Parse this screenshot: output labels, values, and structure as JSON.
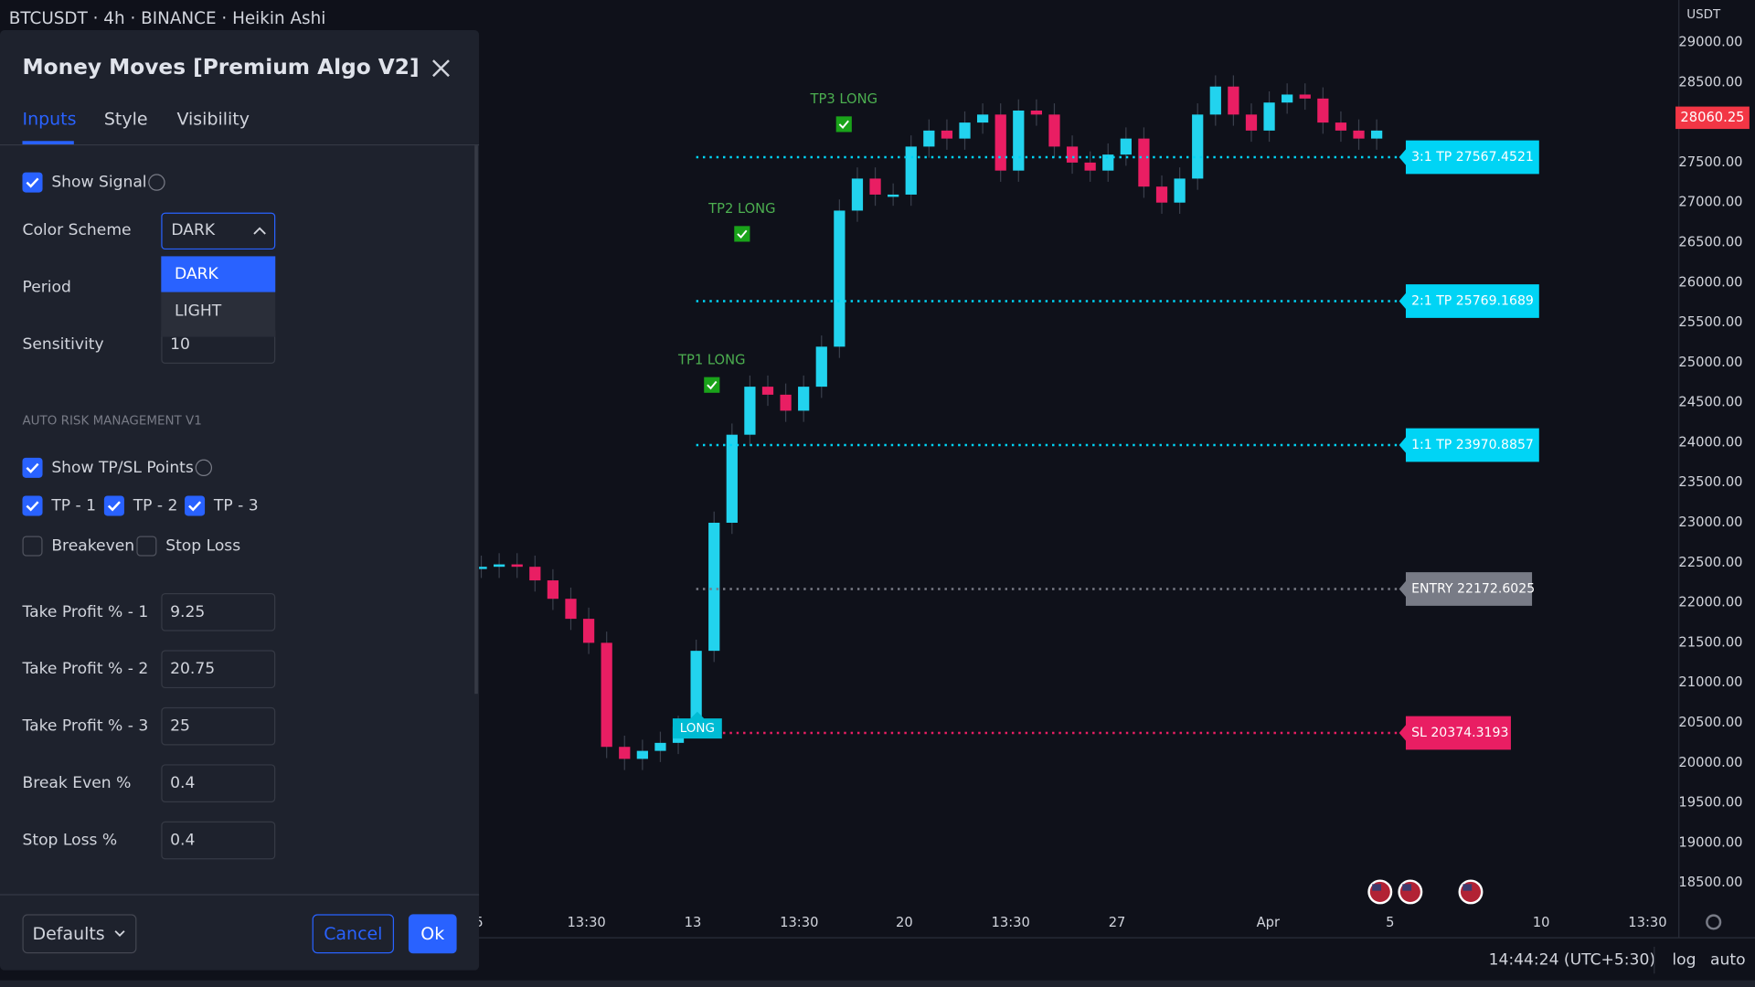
{
  "header": {
    "symbol": "BTCUSDT · 4h · BINANCE · Heikin Ashi"
  },
  "dialog": {
    "title": "Money Moves [Premium Algo V2]",
    "tabs": [
      "Inputs",
      "Style",
      "Visibility"
    ],
    "show_signal": {
      "label": "Show Signal",
      "checked": true
    },
    "color_scheme": {
      "label": "Color Scheme",
      "value": "DARK",
      "options": [
        "DARK",
        "LIGHT"
      ]
    },
    "period": "Period",
    "sensitivity": {
      "label": "Sensitivity",
      "value": "10"
    },
    "section": "AUTO RISK MANAGEMENT V1",
    "checks": [
      {
        "label": "Show TP/SL Points",
        "checked": true
      },
      {
        "label": "TP - 1",
        "checked": true
      },
      {
        "label": "TP - 2",
        "checked": true
      },
      {
        "label": "TP - 3",
        "checked": true
      },
      {
        "label": "Breakeven",
        "checked": false
      },
      {
        "label": "Stop Loss",
        "checked": false
      }
    ],
    "inputs": [
      {
        "label": "Take Profit % - 1",
        "value": "9.25"
      },
      {
        "label": "Take Profit % - 2",
        "value": "20.75"
      },
      {
        "label": "Take Profit % - 3",
        "value": "25"
      },
      {
        "label": "Break Even %",
        "value": "0.4"
      },
      {
        "label": "Stop Loss %",
        "value": "0.4"
      }
    ],
    "buttons": {
      "defaults": "Defaults",
      "cancel": "Cancel",
      "ok": "Ok"
    }
  },
  "chart": {
    "currency": "USDT",
    "ylim": [
      18500,
      29000
    ],
    "yticks": [
      {
        "value": 29000,
        "label": "29000.00"
      },
      {
        "value": 28500,
        "label": "28500.00"
      },
      {
        "value": 28000,
        "label": "28000.00"
      },
      {
        "value": 27500,
        "label": "27500.00"
      },
      {
        "value": 27000,
        "label": "27000.00"
      },
      {
        "value": 26500,
        "label": "26500.00"
      },
      {
        "value": 26000,
        "label": "26000.00"
      },
      {
        "value": 25500,
        "label": "25500.00"
      },
      {
        "value": 25000,
        "label": "25000.00"
      },
      {
        "value": 24500,
        "label": "24500.00"
      },
      {
        "value": 24000,
        "label": "24000.00"
      },
      {
        "value": 23500,
        "label": "23500.00"
      },
      {
        "value": 23000,
        "label": "23000.00"
      },
      {
        "value": 22500,
        "label": "22500.00"
      },
      {
        "value": 22000,
        "label": "22000.00"
      },
      {
        "value": 21500,
        "label": "21500.00"
      },
      {
        "value": 21000,
        "label": "21000.00"
      },
      {
        "value": 20500,
        "label": "20500.00"
      },
      {
        "value": 20000,
        "label": "20000.00"
      },
      {
        "value": 19500,
        "label": "19500.00"
      },
      {
        "value": 19000,
        "label": "19000.00"
      },
      {
        "value": 18500,
        "label": "18500.00"
      }
    ],
    "last_price": 28060.25,
    "xlabels": [
      "5",
      "13:30",
      "13",
      "13:30",
      "20",
      "13:30",
      "27",
      "Apr",
      "5",
      "10",
      "13:30"
    ],
    "up_color": "#22d3ee",
    "down_color": "#e91e63",
    "candles": [
      22450,
      22480,
      22450,
      22280,
      22050,
      21800,
      21500,
      20200,
      20050,
      20150,
      20250,
      20450,
      21400,
      23000,
      24100,
      24700,
      24600,
      24400,
      24700,
      25200,
      26900,
      27300,
      27100,
      27100,
      27700,
      27900,
      27800,
      28000,
      28100,
      27400,
      28150,
      28100,
      27700,
      27500,
      27400,
      27600,
      27800,
      27200,
      27000,
      27300,
      28100,
      28450,
      28100,
      27900,
      28250,
      28350,
      28300,
      28000,
      27900,
      27800,
      27900
    ],
    "levels": [
      {
        "label": "3:1 TP 27567.4521",
        "value": 27567.4521,
        "color": "#00d4f5"
      },
      {
        "label": "2:1 TP 25769.1689",
        "value": 25769.1689,
        "color": "#00d4f5"
      },
      {
        "label": "1:1 TP 23970.8857",
        "value": 23970.8857,
        "color": "#00d4f5"
      },
      {
        "label": "ENTRY 22172.6025",
        "value": 22172.6025,
        "color": "#787b86"
      },
      {
        "label": "SL 20374.3193",
        "value": 20374.3193,
        "color": "#e91e63"
      }
    ],
    "signals": [
      "TP3 LONG",
      "TP2 LONG",
      "TP1 LONG",
      "LONG"
    ]
  },
  "status": {
    "time": "14:44:24 (UTC+5:30)",
    "log": "log",
    "auto": "auto"
  }
}
